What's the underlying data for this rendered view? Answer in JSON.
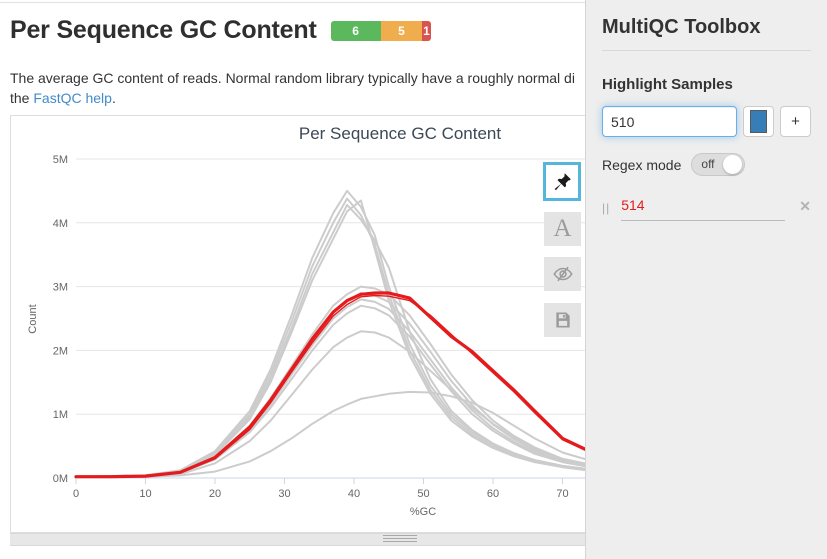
{
  "header": {
    "title": "Per Sequence GC Content",
    "badges": [
      {
        "label": "6",
        "color": "#5cb85c",
        "percent": 50
      },
      {
        "label": "5",
        "color": "#f0ad4e",
        "percent": 41.7
      },
      {
        "label": "1",
        "color": "#d9534f",
        "percent": 8.3
      }
    ],
    "description_line1": "The average GC content of reads. Normal random library typically have a roughly normal di",
    "description_line2_prefix": "the ",
    "description_link_text": "FastQC help",
    "description_line2_suffix": ".",
    "link_color": "#428bca"
  },
  "chart_data": {
    "type": "line",
    "title": "Per Sequence GC Content",
    "xlabel": "%GC",
    "ylabel": "Count",
    "x_ticks": [
      0,
      10,
      20,
      30,
      40,
      50,
      60,
      70
    ],
    "y_tick_labels": [
      "0M",
      "1M",
      "2M",
      "3M",
      "4M",
      "5M"
    ],
    "ylim": [
      0,
      5000000
    ],
    "x_visible_range": [
      0,
      74
    ],
    "grid": true,
    "legend": false,
    "default_line_color": "#cccccc",
    "highlight_color": "#e41a1c",
    "y_unit_millions": true,
    "x": [
      0,
      5,
      10,
      15,
      20,
      25,
      28,
      31,
      34,
      37,
      39,
      41,
      43,
      45,
      48,
      51,
      54,
      57,
      60,
      63,
      66,
      70,
      75
    ],
    "series": [
      {
        "name": "series-1",
        "color": "#cccccc",
        "width": 2,
        "highlighted": false,
        "values": [
          0.01,
          0.01,
          0.02,
          0.04,
          0.1,
          0.26,
          0.42,
          0.62,
          0.85,
          1.05,
          1.15,
          1.24,
          1.28,
          1.32,
          1.35,
          1.34,
          1.28,
          1.18,
          1.02,
          0.82,
          0.62,
          0.4,
          0.24
        ]
      },
      {
        "name": "series-2",
        "color": "#cccccc",
        "width": 2,
        "highlighted": false,
        "values": [
          0.01,
          0.01,
          0.02,
          0.06,
          0.23,
          0.58,
          0.9,
          1.3,
          1.7,
          2.05,
          2.2,
          2.3,
          2.28,
          2.2,
          1.98,
          1.68,
          1.38,
          1.1,
          0.85,
          0.64,
          0.47,
          0.3,
          0.18
        ]
      },
      {
        "name": "series-3",
        "color": "#cccccc",
        "width": 2,
        "highlighted": false,
        "values": [
          0.02,
          0.02,
          0.03,
          0.08,
          0.29,
          0.72,
          1.1,
          1.55,
          2.0,
          2.4,
          2.58,
          2.7,
          2.66,
          2.55,
          2.22,
          1.78,
          1.36,
          1.0,
          0.74,
          0.54,
          0.38,
          0.25,
          0.15
        ]
      },
      {
        "name": "series-4",
        "color": "#cccccc",
        "width": 2,
        "highlighted": false,
        "values": [
          0.02,
          0.02,
          0.03,
          0.08,
          0.3,
          0.75,
          1.15,
          1.62,
          2.08,
          2.5,
          2.68,
          2.8,
          2.76,
          2.65,
          2.3,
          1.86,
          1.42,
          1.06,
          0.78,
          0.57,
          0.41,
          0.26,
          0.16
        ]
      },
      {
        "name": "series-5",
        "color": "#cccccc",
        "width": 2,
        "highlighted": false,
        "values": [
          0.02,
          0.02,
          0.03,
          0.08,
          0.31,
          0.78,
          1.2,
          1.68,
          2.16,
          2.6,
          2.78,
          2.9,
          2.86,
          2.76,
          2.42,
          1.98,
          1.52,
          1.14,
          0.84,
          0.61,
          0.44,
          0.28,
          0.17
        ]
      },
      {
        "name": "series-6",
        "color": "#cccccc",
        "width": 2,
        "highlighted": false,
        "values": [
          0.02,
          0.02,
          0.03,
          0.09,
          0.33,
          0.82,
          1.25,
          1.75,
          2.25,
          2.7,
          2.88,
          3.0,
          2.97,
          2.88,
          2.55,
          2.1,
          1.62,
          1.22,
          0.9,
          0.66,
          0.48,
          0.3,
          0.19
        ]
      },
      {
        "name": "series-7",
        "color": "#cccccc",
        "width": 2,
        "highlighted": false,
        "values": [
          0.02,
          0.02,
          0.03,
          0.1,
          0.36,
          0.92,
          1.5,
          2.28,
          3.1,
          3.75,
          4.18,
          4.35,
          3.58,
          2.78,
          1.92,
          1.32,
          0.9,
          0.65,
          0.47,
          0.34,
          0.25,
          0.17,
          0.1
        ]
      },
      {
        "name": "series-8",
        "color": "#cccccc",
        "width": 2,
        "highlighted": false,
        "values": [
          0.02,
          0.02,
          0.04,
          0.11,
          0.38,
          0.96,
          1.56,
          2.35,
          3.2,
          3.85,
          4.28,
          4.05,
          3.72,
          3.3,
          2.3,
          1.55,
          1.05,
          0.75,
          0.54,
          0.39,
          0.28,
          0.19,
          0.12
        ]
      },
      {
        "name": "series-9",
        "color": "#cccccc",
        "width": 2,
        "highlighted": false,
        "values": [
          0.02,
          0.03,
          0.04,
          0.11,
          0.4,
          1.0,
          1.63,
          2.45,
          3.32,
          4.0,
          4.38,
          4.12,
          3.65,
          2.88,
          2.0,
          1.38,
          0.95,
          0.68,
          0.49,
          0.36,
          0.26,
          0.18,
          0.11
        ]
      },
      {
        "name": "series-10",
        "color": "#cccccc",
        "width": 2,
        "highlighted": false,
        "values": [
          0.02,
          0.03,
          0.04,
          0.12,
          0.42,
          1.05,
          1.7,
          2.55,
          3.45,
          4.15,
          4.5,
          4.25,
          3.8,
          3.0,
          2.1,
          1.45,
          1.0,
          0.72,
          0.52,
          0.38,
          0.28,
          0.19,
          0.12
        ]
      },
      {
        "name": "series-11",
        "color": "#e41a1c",
        "width": 1.4,
        "highlighted": true,
        "values": [
          0.02,
          0.02,
          0.03,
          0.08,
          0.3,
          0.76,
          1.18,
          1.66,
          2.12,
          2.54,
          2.72,
          2.84,
          2.86,
          2.85,
          2.78,
          2.55,
          2.25,
          1.95,
          1.65,
          1.35,
          1.02,
          0.6,
          0.35
        ]
      },
      {
        "name": "series-12",
        "color": "#e41a1c",
        "width": 3.2,
        "highlighted": true,
        "values": [
          0.02,
          0.02,
          0.03,
          0.09,
          0.32,
          0.8,
          1.22,
          1.7,
          2.18,
          2.6,
          2.78,
          2.88,
          2.9,
          2.9,
          2.82,
          2.52,
          2.22,
          1.98,
          1.68,
          1.38,
          1.05,
          0.62,
          0.36
        ]
      }
    ]
  },
  "plot_toolbar": {
    "active_border_color": "#54b6da",
    "buttons": [
      {
        "id": "highlight-samples",
        "icon": "pushpin-icon",
        "active": true
      },
      {
        "id": "rename-samples",
        "icon": "font-icon",
        "glyph": "A",
        "active": false
      },
      {
        "id": "hide-samples",
        "icon": "eye-slash-icon",
        "active": false
      },
      {
        "id": "save-settings",
        "icon": "floppy-icon",
        "active": false
      }
    ]
  },
  "toolbox": {
    "title": "MultiQC Toolbox",
    "highlight": {
      "heading": "Highlight Samples",
      "input_value": "510",
      "swatch_color": "#377eb8",
      "add_button_label": "+",
      "regex_label": "Regex mode",
      "regex_state": "off",
      "items": [
        {
          "value": "514",
          "color": "#e41a1c"
        }
      ]
    },
    "icons": {
      "drag_glyph": "||",
      "remove_glyph": "✕"
    }
  }
}
